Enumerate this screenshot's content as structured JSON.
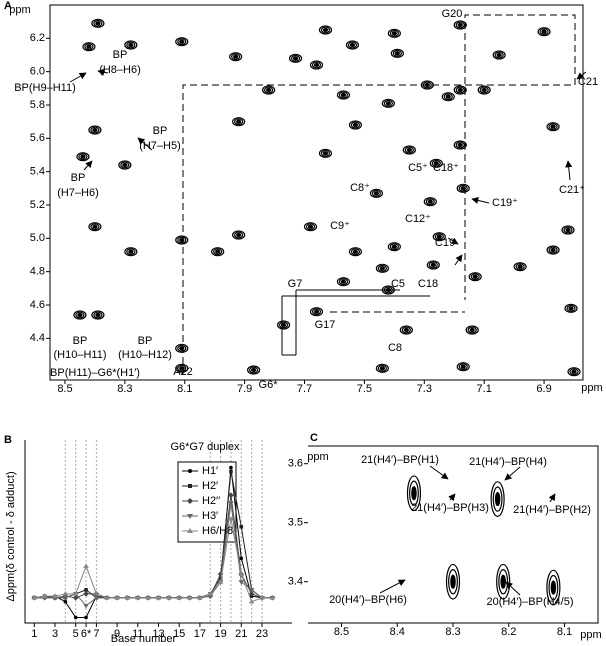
{
  "chart_data": [
    {
      "type": "contour",
      "panel": "A",
      "xlabel": "ppm",
      "ylabel": "ppm",
      "xlim": [
        8.55,
        6.77
      ],
      "ylim": [
        4.15,
        6.4
      ],
      "xticks": [
        8.5,
        8.3,
        8.1,
        7.9,
        7.7,
        7.5,
        7.3,
        7.1,
        6.9
      ],
      "yticks": [
        4.4,
        4.6,
        4.8,
        {
          "value": 5,
          "label": "5.0"
        },
        5.2,
        5.4,
        5.6,
        5.8,
        {
          "value": 6,
          "label": "6.0"
        },
        6.2
      ],
      "x": [
        8.11,
        8.11,
        7.87,
        7.44,
        7.17,
        6.8,
        8.45,
        8.39,
        7.36,
        7.14,
        6.81,
        7.77,
        7.66,
        7.57,
        7.42,
        7.44,
        7.27,
        7.13,
        6.98,
        6.87,
        7.4,
        7.25,
        7.53,
        7.92,
        7.68,
        7.28,
        7.17,
        6.82,
        8.4,
        8.28,
        7.99,
        8.11,
        8.3,
        7.46,
        7.26,
        7.53,
        7.18,
        7.18,
        7.35,
        7.63,
        7.42,
        7.29,
        7.22,
        7.1,
        6.87,
        7.66,
        7.39,
        7.93,
        7.73,
        7.54,
        7.63,
        7.4,
        7.05,
        7.18,
        6.9,
        8.44,
        7.92,
        8.4,
        8.42,
        8.28,
        8.11,
        8.39,
        7.82,
        7.57
      ],
      "y": [
        4.22,
        4.34,
        4.21,
        4.22,
        4.23,
        4.2,
        4.54,
        4.54,
        4.45,
        4.45,
        4.58,
        4.48,
        4.56,
        4.74,
        4.69,
        4.82,
        4.84,
        4.77,
        4.83,
        4.93,
        4.95,
        5.01,
        4.92,
        5.02,
        5.07,
        5.22,
        5.3,
        5.05,
        5.07,
        4.92,
        4.92,
        4.99,
        5.44,
        5.27,
        5.45,
        5.68,
        5.56,
        5.89,
        5.53,
        5.51,
        5.81,
        5.92,
        5.85,
        5.89,
        5.67,
        6.04,
        6.11,
        6.09,
        6.08,
        6.16,
        6.25,
        6.23,
        6.1,
        6.28,
        6.24,
        5.49,
        5.7,
        5.65,
        6.15,
        6.16,
        6.18,
        6.29,
        5.89,
        5.86
      ],
      "annotations": [
        [
          "BP",
          "(H8–H6)"
        ],
        [
          "BP(H9–H11)"
        ],
        [
          "BP",
          "(H7–H5)"
        ],
        [
          "BP",
          "(H7–H6)"
        ],
        [
          "G20"
        ],
        [
          "C21"
        ],
        [
          "C5⁺"
        ],
        [
          "C18⁺"
        ],
        [
          "C19⁺"
        ],
        [
          "C21⁺"
        ],
        [
          "C8⁺"
        ],
        [
          "C12⁺"
        ],
        [
          "C9⁺"
        ],
        [
          "C19"
        ],
        [
          "G7"
        ],
        [
          "C5"
        ],
        [
          "C18"
        ],
        [
          "G17"
        ],
        [
          "C8"
        ],
        [
          "G6*"
        ],
        [
          "A22"
        ],
        [
          "BP",
          "(H10–H11)"
        ],
        [
          "BP",
          "(H10–H12)"
        ],
        [
          "BP(H11)–G6*(H1′)"
        ]
      ]
    },
    {
      "type": "line",
      "panel": "B",
      "title": "G6*G7 duplex",
      "xlabel": "Base number",
      "ylabel": "Δppm(δ control - δ adduct)",
      "xlim": [
        0.1,
        25.9
      ],
      "ylim": [
        -0.32,
        2.0
      ],
      "xticks": [
        1,
        3,
        5,
        {
          "value": 6,
          "label": "6*"
        },
        7,
        9,
        11,
        13,
        15,
        17,
        19,
        21,
        23
      ],
      "xgrid_lines": [
        4,
        5,
        6,
        7,
        18,
        19,
        20,
        21,
        22,
        23
      ],
      "x": [
        1,
        2,
        3,
        4,
        5,
        6,
        7,
        8,
        9,
        10,
        11,
        12,
        13,
        14,
        15,
        16,
        17,
        18,
        19,
        20,
        21,
        22,
        23,
        24
      ],
      "series": [
        {
          "name": "H1′",
          "color": "#000000",
          "marker": "circle",
          "values": [
            0,
            0,
            0.02,
            -0.05,
            -0.25,
            -0.25,
            0.02,
            0,
            0,
            0,
            0,
            0,
            0,
            0,
            0,
            0,
            0,
            0.05,
            0.2,
            1.65,
            0.5,
            0.02,
            0,
            0
          ]
        },
        {
          "name": "H2′",
          "color": "#222222",
          "marker": "square",
          "values": [
            0,
            0.02,
            0,
            0,
            0.05,
            0.1,
            0,
            0,
            0,
            0,
            0,
            0,
            0,
            0,
            0,
            0,
            0,
            0.05,
            0.25,
            1.6,
            0.9,
            0.1,
            0,
            0
          ]
        },
        {
          "name": "H2′′",
          "color": "#444444",
          "marker": "diamond",
          "values": [
            0,
            0,
            0,
            0.02,
            0,
            0.05,
            0.05,
            0,
            0,
            0,
            0,
            0,
            0,
            0,
            0,
            0,
            0,
            0.02,
            0.3,
            1.3,
            0.3,
            0.05,
            0,
            0
          ]
        },
        {
          "name": "H3′",
          "color": "#666666",
          "marker": "triangle-down",
          "values": [
            0,
            0,
            0,
            0,
            0.05,
            -0.1,
            0,
            0,
            0,
            0,
            0,
            0,
            0,
            0,
            0,
            0,
            0,
            0.02,
            0.2,
            1.2,
            0.2,
            0.1,
            0,
            0
          ]
        },
        {
          "name": "H6/H8",
          "color": "#888888",
          "marker": "triangle-up",
          "values": [
            0,
            0.02,
            0.02,
            0.05,
            0.05,
            0.4,
            0.05,
            0,
            0,
            0,
            0,
            0,
            0,
            0,
            0,
            0,
            0,
            0.05,
            0.2,
            1.0,
            0.3,
            -0.05,
            0,
            0
          ]
        }
      ]
    },
    {
      "type": "contour",
      "panel": "C",
      "xlabel": "ppm",
      "ylabel": "ppm",
      "xlim": [
        8.56,
        8.04
      ],
      "ylim": [
        3.33,
        3.63
      ],
      "xticks": [
        8.5,
        8.4,
        8.3,
        8.2,
        8.1
      ],
      "yticks": [
        3.4,
        3.5,
        3.6
      ],
      "x": [
        8.3,
        8.21,
        8.12,
        8.37,
        8.22
      ],
      "y": [
        3.4,
        3.4,
        3.39,
        3.55,
        3.54
      ],
      "annotations": [
        [
          "21(H4′)–BP(H1)"
        ],
        [
          "21(H4′)–BP(H4)"
        ],
        [
          "21(H4′)–BP(H3)"
        ],
        [
          "21(H4′)–BP(H2)"
        ],
        [
          "20(H4′)–BP(H6)"
        ],
        [
          "20(H4′)–BP(H4/5)"
        ]
      ]
    }
  ]
}
